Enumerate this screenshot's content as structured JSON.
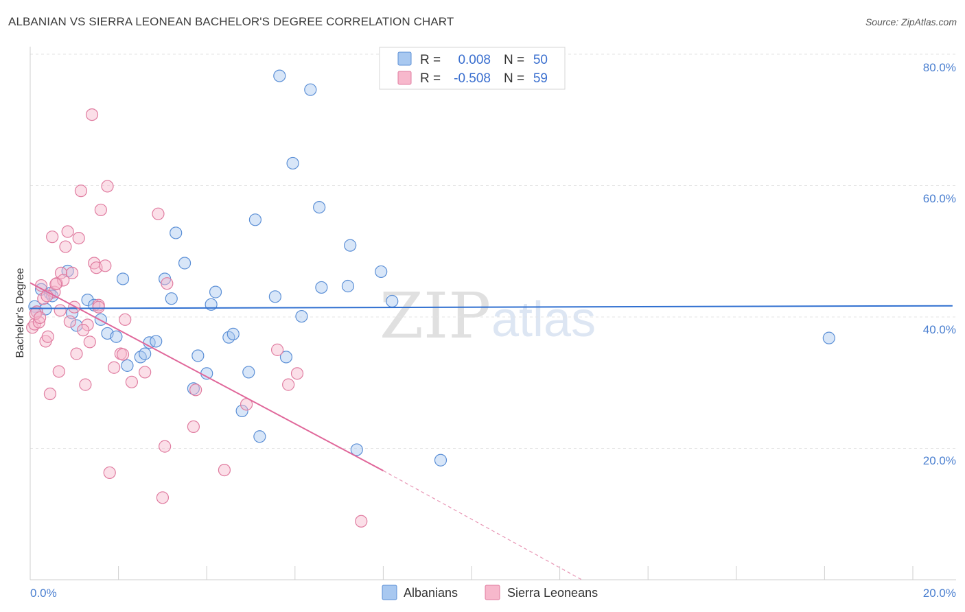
{
  "header": {
    "title": "ALBANIAN VS SIERRA LEONEAN BACHELOR'S DEGREE CORRELATION CHART",
    "source": "Source: ZipAtlas.com"
  },
  "watermark": {
    "zip": "ZIP",
    "atlas": "atlas"
  },
  "legend": {
    "r_label": "R =",
    "n_label": "N =",
    "rows": [
      {
        "r": "0.008",
        "n": "50",
        "color": "#a8c8f0",
        "stroke": "#5b8fd6"
      },
      {
        "r": "-0.508",
        "n": "59",
        "color": "#f7b8cc",
        "stroke": "#e07ca0"
      }
    ]
  },
  "bottom_legend": [
    "Albanians",
    "Sierra Leoneans"
  ],
  "chart_data": {
    "type": "scatter",
    "title": "ALBANIAN VS SIERRA LEONEAN BACHELOR'S DEGREE CORRELATION CHART",
    "xlabel": "",
    "ylabel": "Bachelor's Degree",
    "xlim": [
      0,
      20
    ],
    "ylim": [
      0,
      80
    ],
    "x_tick_labels": [
      "0.0%",
      "20.0%"
    ],
    "y_ticks": [
      20,
      40,
      60,
      80
    ],
    "y_tick_labels": [
      "20.0%",
      "40.0%",
      "60.0%",
      "80.0%"
    ],
    "grid": true,
    "series": [
      {
        "name": "Albanians",
        "color": "#a8c8f0",
        "stroke": "#5b8fd6",
        "R": 0.008,
        "N": 50,
        "trend": {
          "x": [
            0,
            20.9
          ],
          "y": [
            41.3,
            41.7
          ],
          "color": "#2f6fd0"
        },
        "points": [
          [
            0.1,
            41.6
          ],
          [
            0.15,
            40.8
          ],
          [
            0.25,
            44.2
          ],
          [
            0.35,
            41.2
          ],
          [
            0.45,
            43.6
          ],
          [
            0.5,
            43.2
          ],
          [
            0.85,
            47.0
          ],
          [
            0.95,
            40.6
          ],
          [
            1.05,
            38.7
          ],
          [
            1.3,
            42.6
          ],
          [
            1.45,
            41.8
          ],
          [
            1.6,
            39.6
          ],
          [
            1.75,
            37.5
          ],
          [
            1.95,
            37.0
          ],
          [
            2.1,
            45.8
          ],
          [
            2.2,
            32.6
          ],
          [
            2.5,
            33.9
          ],
          [
            2.6,
            34.4
          ],
          [
            2.7,
            36.1
          ],
          [
            2.85,
            36.3
          ],
          [
            3.05,
            45.8
          ],
          [
            3.2,
            42.8
          ],
          [
            3.3,
            52.8
          ],
          [
            3.5,
            48.2
          ],
          [
            3.7,
            29.1
          ],
          [
            3.8,
            34.1
          ],
          [
            4.0,
            31.4
          ],
          [
            4.1,
            41.9
          ],
          [
            4.2,
            43.8
          ],
          [
            4.5,
            36.9
          ],
          [
            4.6,
            37.4
          ],
          [
            4.8,
            25.7
          ],
          [
            4.95,
            31.6
          ],
          [
            5.1,
            54.8
          ],
          [
            5.2,
            21.8
          ],
          [
            5.55,
            43.1
          ],
          [
            5.65,
            76.7
          ],
          [
            5.8,
            33.9
          ],
          [
            5.95,
            63.4
          ],
          [
            6.15,
            40.1
          ],
          [
            6.35,
            74.6
          ],
          [
            6.55,
            56.7
          ],
          [
            6.6,
            44.5
          ],
          [
            7.2,
            44.7
          ],
          [
            7.25,
            50.9
          ],
          [
            7.4,
            19.8
          ],
          [
            7.95,
            46.9
          ],
          [
            8.2,
            42.4
          ],
          [
            9.3,
            18.2
          ],
          [
            18.1,
            36.8
          ]
        ]
      },
      {
        "name": "Sierra Leoneans",
        "color": "#f7b8cc",
        "stroke": "#e07ca0",
        "R": -0.508,
        "N": 59,
        "trend": {
          "x": [
            0,
            8.0
          ],
          "y": [
            45.2,
            16.6
          ],
          "color": "#e0679a"
        },
        "trend_dashed": {
          "x": [
            8.0,
            12.5
          ],
          "y": [
            16.6,
            0
          ],
          "color": "#e896b5"
        },
        "points": [
          [
            0.05,
            38.4
          ],
          [
            0.1,
            38.9
          ],
          [
            0.15,
            40.8
          ],
          [
            0.2,
            39.2
          ],
          [
            0.25,
            44.8
          ],
          [
            0.3,
            42.8
          ],
          [
            0.35,
            36.3
          ],
          [
            0.4,
            37.0
          ],
          [
            0.45,
            28.3
          ],
          [
            0.5,
            52.2
          ],
          [
            0.55,
            43.8
          ],
          [
            0.6,
            45.1
          ],
          [
            0.65,
            31.7
          ],
          [
            0.7,
            46.7
          ],
          [
            0.75,
            45.6
          ],
          [
            0.8,
            50.7
          ],
          [
            0.85,
            53.0
          ],
          [
            0.9,
            39.3
          ],
          [
            0.95,
            46.7
          ],
          [
            1.0,
            41.5
          ],
          [
            1.05,
            34.4
          ],
          [
            1.1,
            52.0
          ],
          [
            1.15,
            59.2
          ],
          [
            1.25,
            29.7
          ],
          [
            1.3,
            38.8
          ],
          [
            1.35,
            36.2
          ],
          [
            1.4,
            70.8
          ],
          [
            1.45,
            48.2
          ],
          [
            1.5,
            47.5
          ],
          [
            1.55,
            41.8
          ],
          [
            1.6,
            56.3
          ],
          [
            1.7,
            47.8
          ],
          [
            1.75,
            59.9
          ],
          [
            1.8,
            16.3
          ],
          [
            1.9,
            32.3
          ],
          [
            2.05,
            34.4
          ],
          [
            2.1,
            34.3
          ],
          [
            2.15,
            39.6
          ],
          [
            2.3,
            30.1
          ],
          [
            2.6,
            31.6
          ],
          [
            2.9,
            55.7
          ],
          [
            3.0,
            12.5
          ],
          [
            3.05,
            20.3
          ],
          [
            3.1,
            45.1
          ],
          [
            3.7,
            23.3
          ],
          [
            3.75,
            28.9
          ],
          [
            4.4,
            16.7
          ],
          [
            4.9,
            26.7
          ],
          [
            5.6,
            35.0
          ],
          [
            5.85,
            29.7
          ],
          [
            6.05,
            31.4
          ],
          [
            7.5,
            8.9
          ],
          [
            0.12,
            40.5
          ],
          [
            0.22,
            39.9
          ],
          [
            0.38,
            43.2
          ],
          [
            0.58,
            45.0
          ],
          [
            0.68,
            41.0
          ],
          [
            1.2,
            38.0
          ],
          [
            1.55,
            41.5
          ]
        ]
      }
    ]
  }
}
